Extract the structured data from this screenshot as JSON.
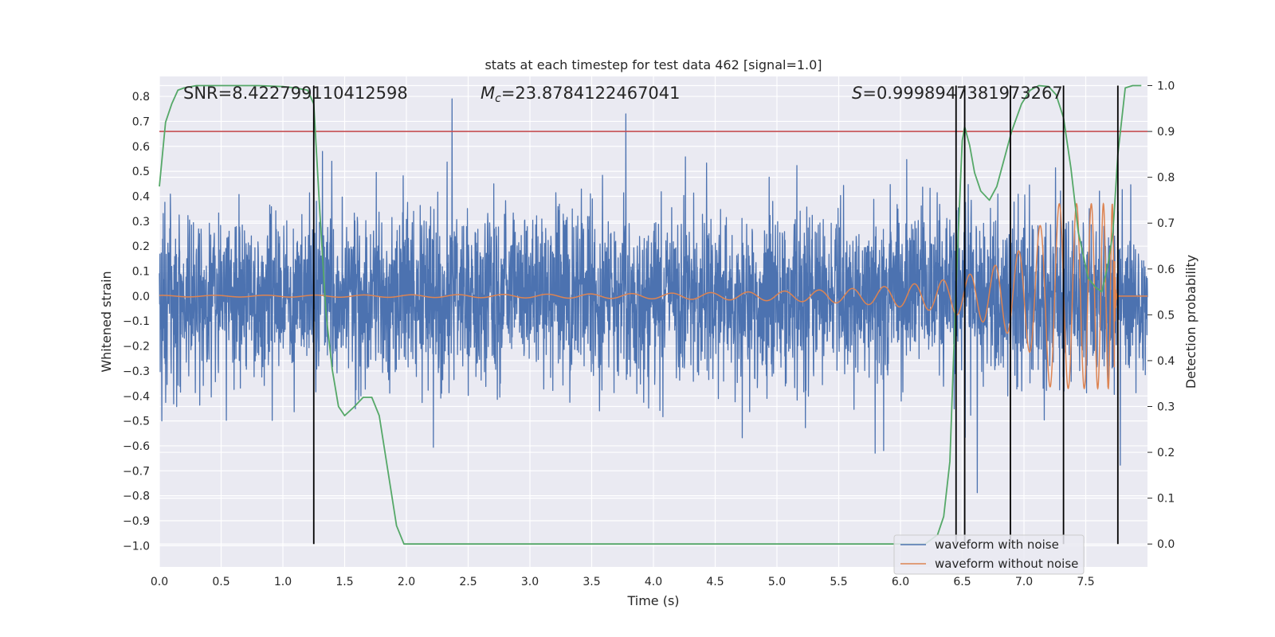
{
  "chart_data": {
    "type": "line",
    "title": "stats at each timestep for test data 462 [signal=1.0]",
    "xlabel": "Time (s)",
    "ylabel_left": "Whitened strain",
    "ylabel_right": "Detection probability",
    "xlim": [
      0.0,
      8.0
    ],
    "ylim_left": [
      -1.085,
      0.88
    ],
    "ylim_right": [
      -0.05,
      1.02
    ],
    "x_ticks": [
      "0.0",
      "0.5",
      "1.0",
      "1.5",
      "2.0",
      "2.5",
      "3.0",
      "3.5",
      "4.0",
      "4.5",
      "5.0",
      "5.5",
      "6.0",
      "6.5",
      "7.0",
      "7.5"
    ],
    "y_ticks_left": [
      "0.8",
      "0.7",
      "0.6",
      "0.5",
      "0.4",
      "0.3",
      "0.2",
      "0.1",
      "0.0",
      "−0.1",
      "−0.2",
      "−0.3",
      "−0.4",
      "−0.5",
      "−0.6",
      "−0.7",
      "−0.8",
      "−0.9",
      "−1.0"
    ],
    "y_ticks_right": [
      "1.0",
      "0.9",
      "0.8",
      "0.7",
      "0.6",
      "0.5",
      "0.4",
      "0.3",
      "0.2",
      "0.1",
      "0.0"
    ],
    "annotations": {
      "snr": "SNR=8.422799110412598",
      "mc_symbol": "M",
      "mc_sub": "c",
      "mc_value": "=23.8784122467041",
      "s_symbol": "S",
      "s_value": "=0.9998947381973267"
    },
    "threshold_probability": 0.9,
    "vertical_markers_s": [
      1.25,
      6.45,
      6.52,
      6.89,
      7.32,
      7.76
    ],
    "series": [
      {
        "name": "waveform with noise",
        "color": "#4c72b0",
        "noise_std": 0.17,
        "noise_clip": [
          -1.0,
          0.79
        ]
      },
      {
        "name": "waveform without noise",
        "color": "#dd8452",
        "chirp": {
          "t_merge": 7.73,
          "amp_start": 0.003,
          "amp_end": 0.37
        }
      },
      {
        "name": "detection probability",
        "color": "#55a868",
        "axis": "right",
        "x": [
          0.0,
          0.05,
          0.1,
          0.15,
          0.2,
          0.3,
          0.5,
          0.8,
          1.0,
          1.1,
          1.2,
          1.25,
          1.3,
          1.35,
          1.4,
          1.45,
          1.5,
          1.58,
          1.65,
          1.72,
          1.78,
          1.85,
          1.92,
          1.98,
          2.5,
          3.5,
          4.5,
          5.5,
          6.0,
          6.2,
          6.3,
          6.35,
          6.4,
          6.45,
          6.5,
          6.52,
          6.56,
          6.6,
          6.65,
          6.72,
          6.78,
          6.85,
          6.9,
          6.98,
          7.05,
          7.12,
          7.2,
          7.26,
          7.32,
          7.38,
          7.44,
          7.52,
          7.58,
          7.63,
          7.68,
          7.72,
          7.76,
          7.82,
          7.88,
          7.95
        ],
        "values": [
          0.78,
          0.92,
          0.96,
          0.99,
          0.995,
          1.0,
          1.0,
          1.0,
          0.998,
          0.995,
          0.99,
          0.96,
          0.72,
          0.5,
          0.38,
          0.3,
          0.28,
          0.3,
          0.32,
          0.32,
          0.28,
          0.16,
          0.04,
          0.0,
          0.0,
          0.0,
          0.0,
          0.0,
          0.0,
          0.0,
          0.02,
          0.06,
          0.18,
          0.56,
          0.88,
          0.91,
          0.87,
          0.81,
          0.77,
          0.75,
          0.78,
          0.85,
          0.9,
          0.96,
          0.99,
          1.0,
          0.998,
          0.98,
          0.93,
          0.82,
          0.68,
          0.58,
          0.56,
          0.55,
          0.61,
          0.68,
          0.85,
          0.995,
          1.0,
          1.0
        ]
      }
    ],
    "legend": {
      "position": "lower-right",
      "entries": [
        "waveform with noise",
        "waveform without noise"
      ]
    }
  }
}
